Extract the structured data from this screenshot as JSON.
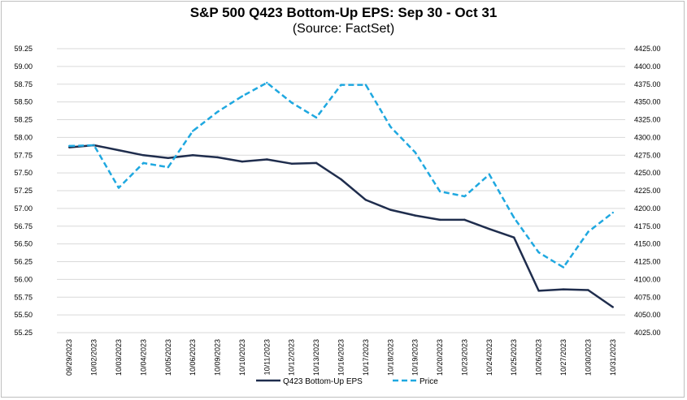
{
  "chart_data": {
    "type": "line",
    "title": "S&P 500 Q423 Bottom-Up EPS: Sep 30 - Oct 31",
    "subtitle": "(Source: FactSet)",
    "categories": [
      "09/29/2023",
      "10/02/2023",
      "10/03/2023",
      "10/04/2023",
      "10/05/2023",
      "10/06/2023",
      "10/09/2023",
      "10/10/2023",
      "10/11/2023",
      "10/12/2023",
      "10/13/2023",
      "10/16/2023",
      "10/17/2023",
      "10/18/2023",
      "10/19/2023",
      "10/20/2023",
      "10/23/2023",
      "10/24/2023",
      "10/25/2023",
      "10/26/2023",
      "10/27/2023",
      "10/30/2023",
      "10/31/2023"
    ],
    "y_left": {
      "min": 55.25,
      "max": 59.25,
      "step": 0.25,
      "ticks": [
        "55.25",
        "55.50",
        "55.75",
        "56.00",
        "56.25",
        "56.50",
        "56.75",
        "57.00",
        "57.25",
        "57.50",
        "57.75",
        "58.00",
        "58.25",
        "58.50",
        "58.75",
        "59.00",
        "59.25"
      ]
    },
    "y_right": {
      "min": 4025,
      "max": 4425,
      "step": 25,
      "ticks": [
        "4025.00",
        "4050.00",
        "4075.00",
        "4100.00",
        "4125.00",
        "4150.00",
        "4175.00",
        "4200.00",
        "4225.00",
        "4250.00",
        "4275.00",
        "4300.00",
        "4325.00",
        "4350.00",
        "4375.00",
        "4400.00",
        "4425.00"
      ]
    },
    "grid": "horizontal",
    "legend_position": "bottom",
    "series": [
      {
        "name": "Q423 Bottom-Up EPS",
        "axis": "left",
        "style": "solid",
        "color": "#1f2d4d",
        "values": [
          57.86,
          57.89,
          57.82,
          57.75,
          57.71,
          57.75,
          57.72,
          57.66,
          57.69,
          57.63,
          57.64,
          57.41,
          57.12,
          56.98,
          56.9,
          56.84,
          56.84,
          56.71,
          56.59,
          55.84,
          55.86,
          55.85,
          55.61
        ]
      },
      {
        "name": "Price",
        "axis": "right",
        "style": "dashed",
        "color": "#1fa8e0",
        "values": [
          4288,
          4289,
          4229,
          4264,
          4258,
          4309,
          4336,
          4358,
          4377,
          4349,
          4328,
          4374,
          4374,
          4315,
          4279,
          4224,
          4217,
          4248,
          4187,
          4138,
          4117,
          4167,
          4194
        ]
      }
    ]
  }
}
